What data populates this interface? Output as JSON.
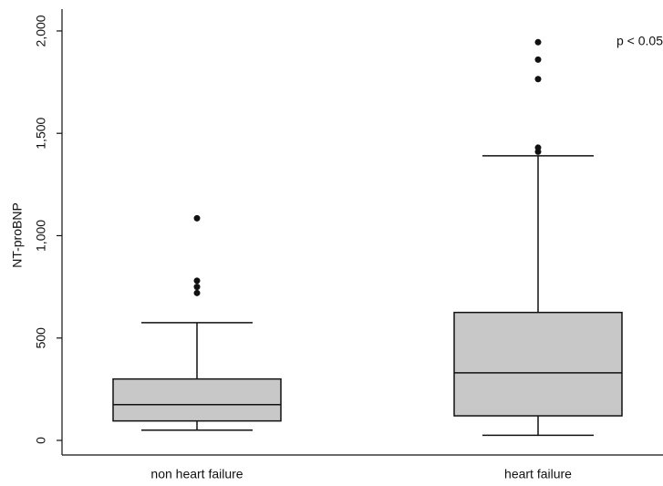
{
  "chart_data": {
    "type": "box",
    "y_label": "NT-proBNP",
    "annotation": "p < 0.05",
    "categories": [
      "non heart failure",
      "heart failure"
    ],
    "boxes": [
      {
        "whislo": 50,
        "q1": 95,
        "median": 175,
        "q3": 300,
        "whishi": 575,
        "fliers": [
          720,
          750,
          780,
          1085
        ]
      },
      {
        "whislo": 25,
        "q1": 120,
        "median": 330,
        "q3": 625,
        "whishi": 1390,
        "fliers": [
          1410,
          1430,
          1765,
          1860,
          1945
        ]
      }
    ],
    "color": "#c8c8c8",
    "ylim": [
      -70,
      2100
    ],
    "yticks": [
      0,
      500,
      {
        "value": 1000,
        "label": "1,000"
      },
      {
        "value": 1500,
        "label": "1,500"
      },
      {
        "value": 2000,
        "label": "2,000"
      }
    ]
  }
}
